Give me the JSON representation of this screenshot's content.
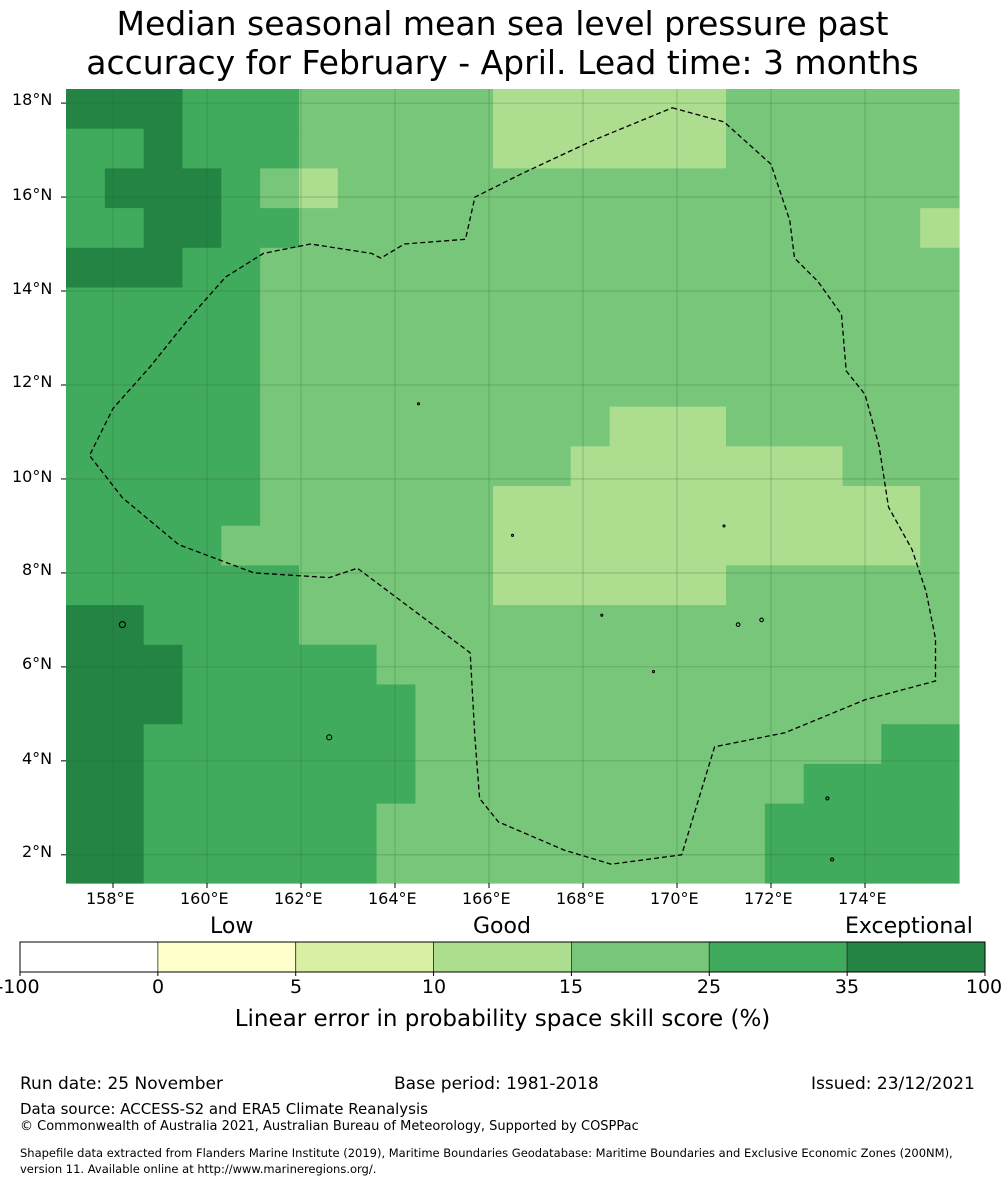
{
  "title_line1": "Median seasonal mean sea level pressure past",
  "title_line2": "accuracy for February - April. Lead time: 3 months",
  "map": {
    "lon_range": [
      157.0,
      176.0
    ],
    "lat_range": [
      1.4,
      18.3
    ],
    "x_ticks": [
      "158°E",
      "160°E",
      "162°E",
      "164°E",
      "166°E",
      "168°E",
      "170°E",
      "172°E",
      "174°E"
    ],
    "y_ticks": [
      "18°N",
      "16°N",
      "14°N",
      "12°N",
      "10°N",
      "8°N",
      "6°N",
      "4°N",
      "2°N"
    ],
    "grid": true,
    "boundary": "dashed EEZ outline"
  },
  "legend": {
    "categories": [
      "Low",
      "Good",
      "Exceptional"
    ],
    "ticks": [
      "-100",
      "0",
      "5",
      "10",
      "15",
      "25",
      "35",
      "100"
    ],
    "bins": [
      {
        "range": "-100 to 0",
        "color": "#ffffff"
      },
      {
        "range": "0 to 5",
        "color": "#ffffcc"
      },
      {
        "range": "5 to 10",
        "color": "#d9f0a3"
      },
      {
        "range": "10 to 15",
        "color": "#addd8e"
      },
      {
        "range": "15 to 25",
        "color": "#78c679"
      },
      {
        "range": "25 to 35",
        "color": "#41ab5d"
      },
      {
        "range": "35 to 100",
        "color": "#238443"
      }
    ],
    "title": "Linear error in probability space skill score (%)"
  },
  "footer": {
    "run_date": "Run date: 25 November",
    "base_period": "Base period: 1981-2018",
    "issued": "Issued: 23/12/2021",
    "data_source": "Data source: ACCESS-S2 and ERA5 Climate Reanalysis",
    "copyright": "© Commonwealth of Australia 2021, Australian Bureau of Meteorology, Supported by COSPPac",
    "shapefile_line1": "Shapefile data extracted from Flanders Marine Institute (2019), Maritime Boundaries Geodatabase: Maritime Boundaries and Exclusive Economic Zones (200NM),",
    "shapefile_line2": "version 11. Available online at http://www.marineregions.org/."
  }
}
